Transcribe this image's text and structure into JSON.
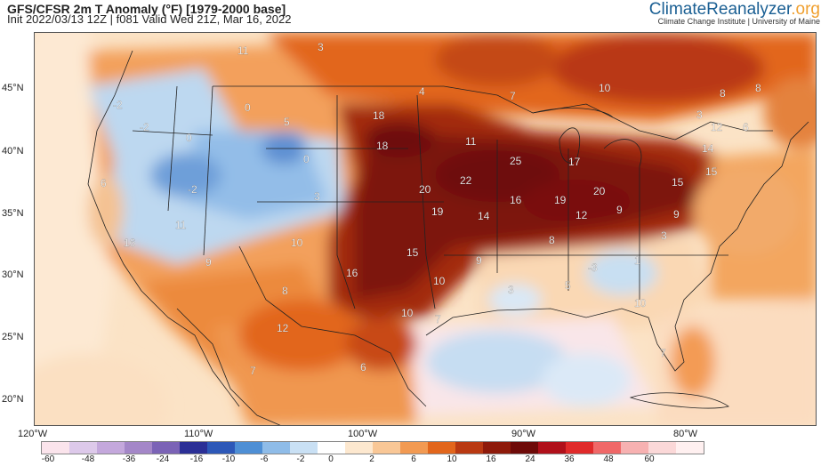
{
  "header": {
    "title": "GFS/CFSR 2m T Anomaly (°F) [1979-2000 base]",
    "subtitle": "Init 2022/03/13 12Z | f081 Valid Wed 21Z, Mar 16, 2022"
  },
  "brand": {
    "name_main": "ClimateReanalyzer",
    "name_tld": ".org",
    "institution": "Climate Change Institute | University of Maine"
  },
  "axes": {
    "lat_labels": [
      "45°N",
      "40°N",
      "35°N",
      "30°N",
      "25°N",
      "20°N"
    ],
    "lon_labels": [
      "120°W",
      "110°W",
      "100°W",
      "90°W",
      "80°W"
    ]
  },
  "colorbar": {
    "labels": [
      "-60",
      "-48",
      "-36",
      "-24",
      "-16",
      "-10",
      "-6",
      "-2",
      "0",
      "2",
      "6",
      "10",
      "16",
      "24",
      "36",
      "48",
      "60"
    ],
    "colors": [
      "#fbe4ec",
      "#ddc9ea",
      "#c4a8dc",
      "#a487c8",
      "#7b63b6",
      "#2b2f96",
      "#2d58b8",
      "#4e8fd5",
      "#8fbce8",
      "#c9e0f4",
      "#ffffff",
      "#fde8cf",
      "#f9c796",
      "#f29a52",
      "#e2661c",
      "#b93912",
      "#8e1a0a",
      "#6e0a08",
      "#b0101a",
      "#e02a2a",
      "#f06868",
      "#f7b1b1",
      "#fbd8d8",
      "#fff0f0"
    ]
  },
  "map_labels": [
    {
      "v": "11"
    },
    {
      "v": "3"
    },
    {
      "v": "-2"
    },
    {
      "v": "0"
    },
    {
      "v": "-2"
    },
    {
      "v": "0"
    },
    {
      "v": "5"
    },
    {
      "v": "0"
    },
    {
      "v": "4"
    },
    {
      "v": "7"
    },
    {
      "v": "10"
    },
    {
      "v": "8"
    },
    {
      "v": "8"
    },
    {
      "v": "3"
    },
    {
      "v": "12"
    },
    {
      "v": "6"
    },
    {
      "v": "18"
    },
    {
      "v": "18"
    },
    {
      "v": "11"
    },
    {
      "v": "25"
    },
    {
      "v": "17"
    },
    {
      "v": "14"
    },
    {
      "v": "15"
    },
    {
      "v": "6"
    },
    {
      "v": "-2"
    },
    {
      "v": "3"
    },
    {
      "v": "20"
    },
    {
      "v": "22"
    },
    {
      "v": "16"
    },
    {
      "v": "19"
    },
    {
      "v": "20"
    },
    {
      "v": "15"
    },
    {
      "v": "11"
    },
    {
      "v": "19"
    },
    {
      "v": "14"
    },
    {
      "v": "12"
    },
    {
      "v": "9"
    },
    {
      "v": "9"
    },
    {
      "v": "16"
    },
    {
      "v": "10"
    },
    {
      "v": "15"
    },
    {
      "v": "8"
    },
    {
      "v": "3"
    },
    {
      "v": "9"
    },
    {
      "v": "16"
    },
    {
      "v": "9"
    },
    {
      "v": "-3"
    },
    {
      "v": "1"
    },
    {
      "v": "10"
    },
    {
      "v": "3"
    },
    {
      "v": "5"
    },
    {
      "v": "8"
    },
    {
      "v": "10"
    },
    {
      "v": "10"
    },
    {
      "v": "7"
    },
    {
      "v": "12"
    },
    {
      "v": "7"
    },
    {
      "v": "6"
    },
    {
      "v": "7"
    }
  ]
}
